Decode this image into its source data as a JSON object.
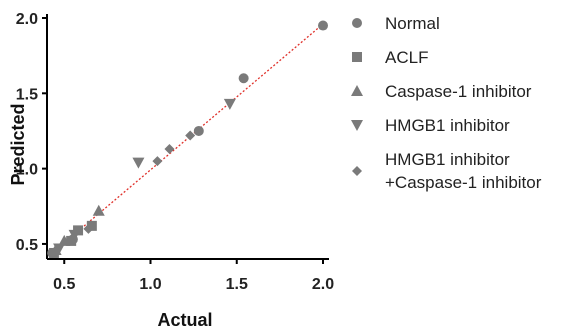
{
  "chart_data": {
    "type": "scatter",
    "title": "",
    "xlabel": "Actual",
    "ylabel": "Predicted",
    "xlim": [
      0.4,
      2.0
    ],
    "ylim": [
      0.4,
      2.0
    ],
    "xticks": [
      "0.5",
      "1.0",
      "1.5",
      "2.0"
    ],
    "yticks": [
      "0.5",
      "1.0",
      "1.5",
      "2.0"
    ],
    "xtick_values": [
      0.5,
      1.0,
      1.5,
      2.0
    ],
    "ytick_values": [
      0.5,
      1.0,
      1.5,
      2.0
    ],
    "grid": false,
    "legend_position": "right",
    "point_color": "#7a7a7a",
    "reference_line": {
      "style": "dotted",
      "color": "#e0302a",
      "from": [
        0.42,
        0.43
      ],
      "to": [
        2.0,
        1.96
      ]
    },
    "series": [
      {
        "name": "Normal",
        "marker": "circle",
        "points": [
          [
            0.43,
            0.44
          ],
          [
            0.55,
            0.53
          ],
          [
            1.28,
            1.25
          ],
          [
            1.54,
            1.6
          ],
          [
            2.0,
            1.95
          ]
        ]
      },
      {
        "name": "ACLF",
        "marker": "square",
        "points": [
          [
            0.44,
            0.44
          ],
          [
            0.54,
            0.52
          ],
          [
            0.58,
            0.59
          ],
          [
            0.66,
            0.62
          ]
        ]
      },
      {
        "name": "Caspase-1 inhibitor",
        "marker": "triangle-up",
        "points": [
          [
            0.45,
            0.46
          ],
          [
            0.5,
            0.52
          ],
          [
            0.7,
            0.72
          ]
        ]
      },
      {
        "name": "HMGB1 inhibitor",
        "marker": "triangle-down",
        "points": [
          [
            0.47,
            0.47
          ],
          [
            0.56,
            0.56
          ],
          [
            0.93,
            1.04
          ],
          [
            1.46,
            1.43
          ]
        ]
      },
      {
        "name": "HMGB1 inhibitor",
        "name_line2": "+Caspase-1 inhibitor",
        "marker": "diamond",
        "points": [
          [
            0.64,
            0.6
          ],
          [
            1.04,
            1.05
          ],
          [
            1.11,
            1.13
          ],
          [
            1.23,
            1.22
          ]
        ]
      }
    ]
  }
}
